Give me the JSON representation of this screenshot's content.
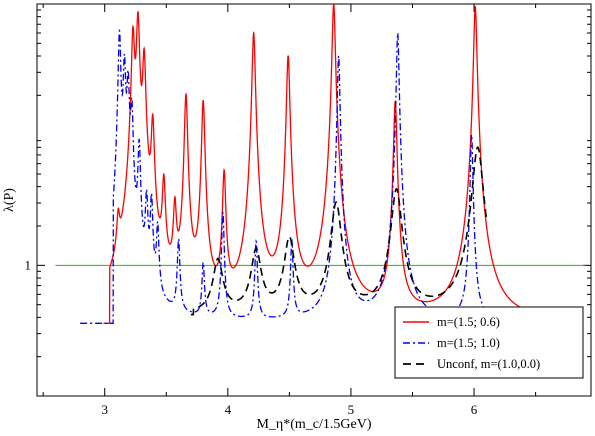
{
  "chart_data": {
    "type": "line",
    "title": "",
    "xlabel": "M_η*(m_c/1.5GeV)",
    "ylabel": "λ(P)",
    "xlim": [
      2.45,
      6.95
    ],
    "ylim": [
      0.1,
      100
    ],
    "yscale": "log",
    "grid": false,
    "legend_position": "bottom-right",
    "x_ticks": [
      3,
      4,
      5,
      6
    ],
    "x_tick_labels": [
      "3",
      "4",
      "5",
      "6"
    ],
    "y_ticks": [
      1
    ],
    "y_tick_labels": [
      "1"
    ],
    "reference_line": {
      "y": 1,
      "x_range": [
        2.6,
        6.9
      ],
      "color": "#00cc00"
    },
    "colors": {
      "m15_06": "#ff0000",
      "m15_10": "#0000ff",
      "unconf": "#000000"
    },
    "series": [
      {
        "name": "m=(1.5; 0.6)",
        "color": "#ff0000",
        "dash": "solid",
        "base": 0.36,
        "x_range": [
          2.99,
          6.55
        ],
        "threshold": 3.04,
        "continuum": {
          "x": [
            3.04,
            3.13,
            3.22
          ],
          "peak": 1.5
        },
        "peaks": [
          {
            "x": 3.11,
            "y": 1.5
          },
          {
            "x": 3.23,
            "y": 60
          },
          {
            "x": 3.27,
            "y": 80
          },
          {
            "x": 3.32,
            "y": 40
          },
          {
            "x": 3.39,
            "y": 12
          },
          {
            "x": 3.48,
            "y": 4
          },
          {
            "x": 3.57,
            "y": 2.5
          },
          {
            "x": 3.66,
            "y": 20
          },
          {
            "x": 3.8,
            "y": 18
          },
          {
            "x": 3.97,
            "y": 5
          },
          {
            "x": 4.21,
            "y": 60
          },
          {
            "x": 4.49,
            "y": 40
          },
          {
            "x": 4.86,
            "y": 100
          },
          {
            "x": 5.36,
            "y": 18
          },
          {
            "x": 6.01,
            "y": 95
          }
        ]
      },
      {
        "name": "m=(1.5; 1.0)",
        "color": "#0000ff",
        "dash": "dash-dot",
        "base": 0.36,
        "x_range": [
          2.8,
          6.15
        ],
        "threshold": 3.07,
        "continuum": {
          "x": [
            3.07,
            3.12,
            3.18
          ],
          "peak": 1.6
        },
        "peaks": [
          {
            "x": 3.12,
            "y": 60
          },
          {
            "x": 3.16,
            "y": 35
          },
          {
            "x": 3.19,
            "y": 25
          },
          {
            "x": 3.22,
            "y": 15
          },
          {
            "x": 3.28,
            "y": 8
          },
          {
            "x": 3.34,
            "y": 3
          },
          {
            "x": 3.38,
            "y": 3
          },
          {
            "x": 3.43,
            "y": 1.8
          },
          {
            "x": 3.6,
            "y": 1.5
          },
          {
            "x": 3.8,
            "y": 1.0
          },
          {
            "x": 3.96,
            "y": 2.5
          },
          {
            "x": 4.23,
            "y": 1.5
          },
          {
            "x": 4.52,
            "y": 1.5
          },
          {
            "x": 4.9,
            "y": 40
          },
          {
            "x": 5.38,
            "y": 60
          },
          {
            "x": 5.98,
            "y": 10
          }
        ]
      },
      {
        "name": "Unconf, m=(1.0,0.0)",
        "color": "#000000",
        "dash": "dashed",
        "base": 0.42,
        "x_range": [
          3.7,
          6.1
        ],
        "threshold": 3.72,
        "peaks": [
          {
            "x": 3.92,
            "y": 1.1
          },
          {
            "x": 4.23,
            "y": 1.3
          },
          {
            "x": 4.5,
            "y": 1.6
          },
          {
            "x": 4.88,
            "y": 3.0
          },
          {
            "x": 5.37,
            "y": 3.8
          },
          {
            "x": 6.03,
            "y": 8.0
          }
        ]
      }
    ]
  }
}
